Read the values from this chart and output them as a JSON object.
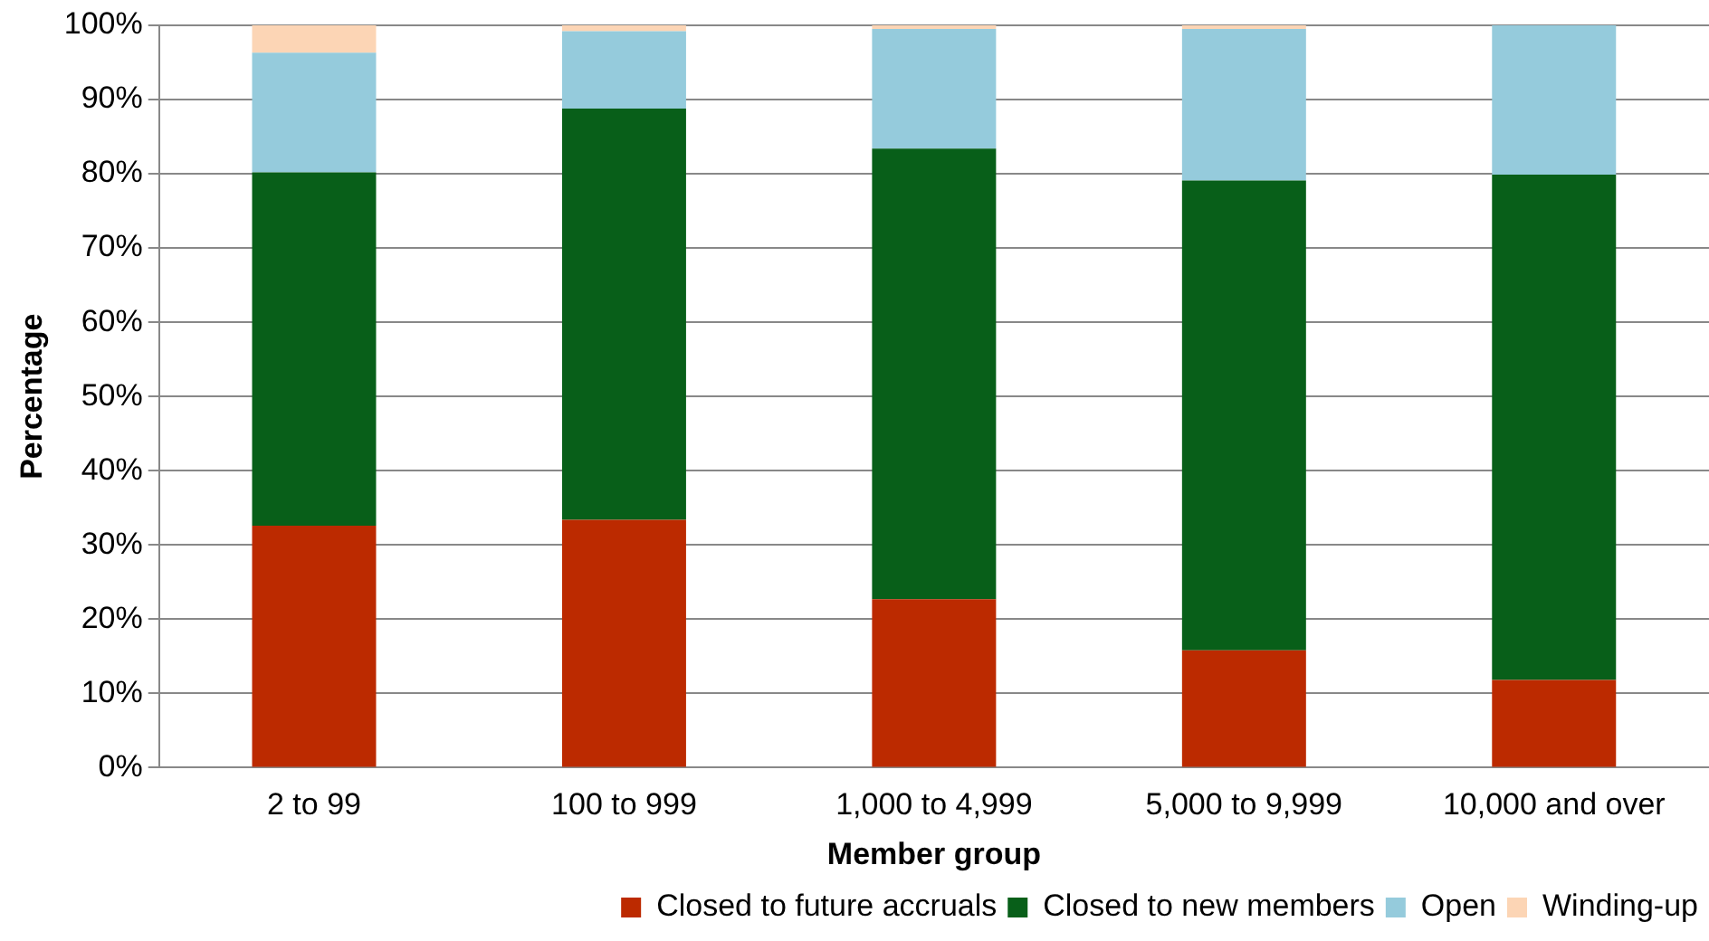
{
  "chart_data": {
    "type": "bar",
    "stacked": true,
    "xlabel": "Member group",
    "ylabel": "Percentage",
    "categories": [
      "2 to 99",
      "100 to 999",
      "1,000 to 4,999",
      "5,000 to 9,999",
      "10,000 and over"
    ],
    "series": [
      {
        "name": "Closed to future accruals",
        "color": "#bc2a00",
        "values": [
          32.6,
          33.4,
          22.7,
          15.8,
          11.8
        ]
      },
      {
        "name": "Closed to new members",
        "color": "#085f19",
        "values": [
          47.6,
          55.4,
          60.7,
          63.3,
          68.1
        ]
      },
      {
        "name": "Open",
        "color": "#95cbdc",
        "values": [
          16.1,
          10.4,
          16.1,
          20.4,
          20.1
        ]
      },
      {
        "name": "Winding-up",
        "color": "#fcd5b5",
        "values": [
          3.7,
          0.8,
          0.5,
          0.5,
          0
        ]
      }
    ],
    "ylim": [
      0,
      100
    ],
    "yticks": [
      {
        "value": 0,
        "label": "0%"
      },
      {
        "value": 10,
        "label": "10%"
      },
      {
        "value": 20,
        "label": "20%"
      },
      {
        "value": 30,
        "label": "30%"
      },
      {
        "value": 40,
        "label": "40%"
      },
      {
        "value": 50,
        "label": "50%"
      },
      {
        "value": 60,
        "label": "60%"
      },
      {
        "value": 70,
        "label": "70%"
      },
      {
        "value": 80,
        "label": "80%"
      },
      {
        "value": 90,
        "label": "90%"
      },
      {
        "value": 100,
        "label": "100%"
      }
    ],
    "grid": "y",
    "legend": "bottom right"
  }
}
